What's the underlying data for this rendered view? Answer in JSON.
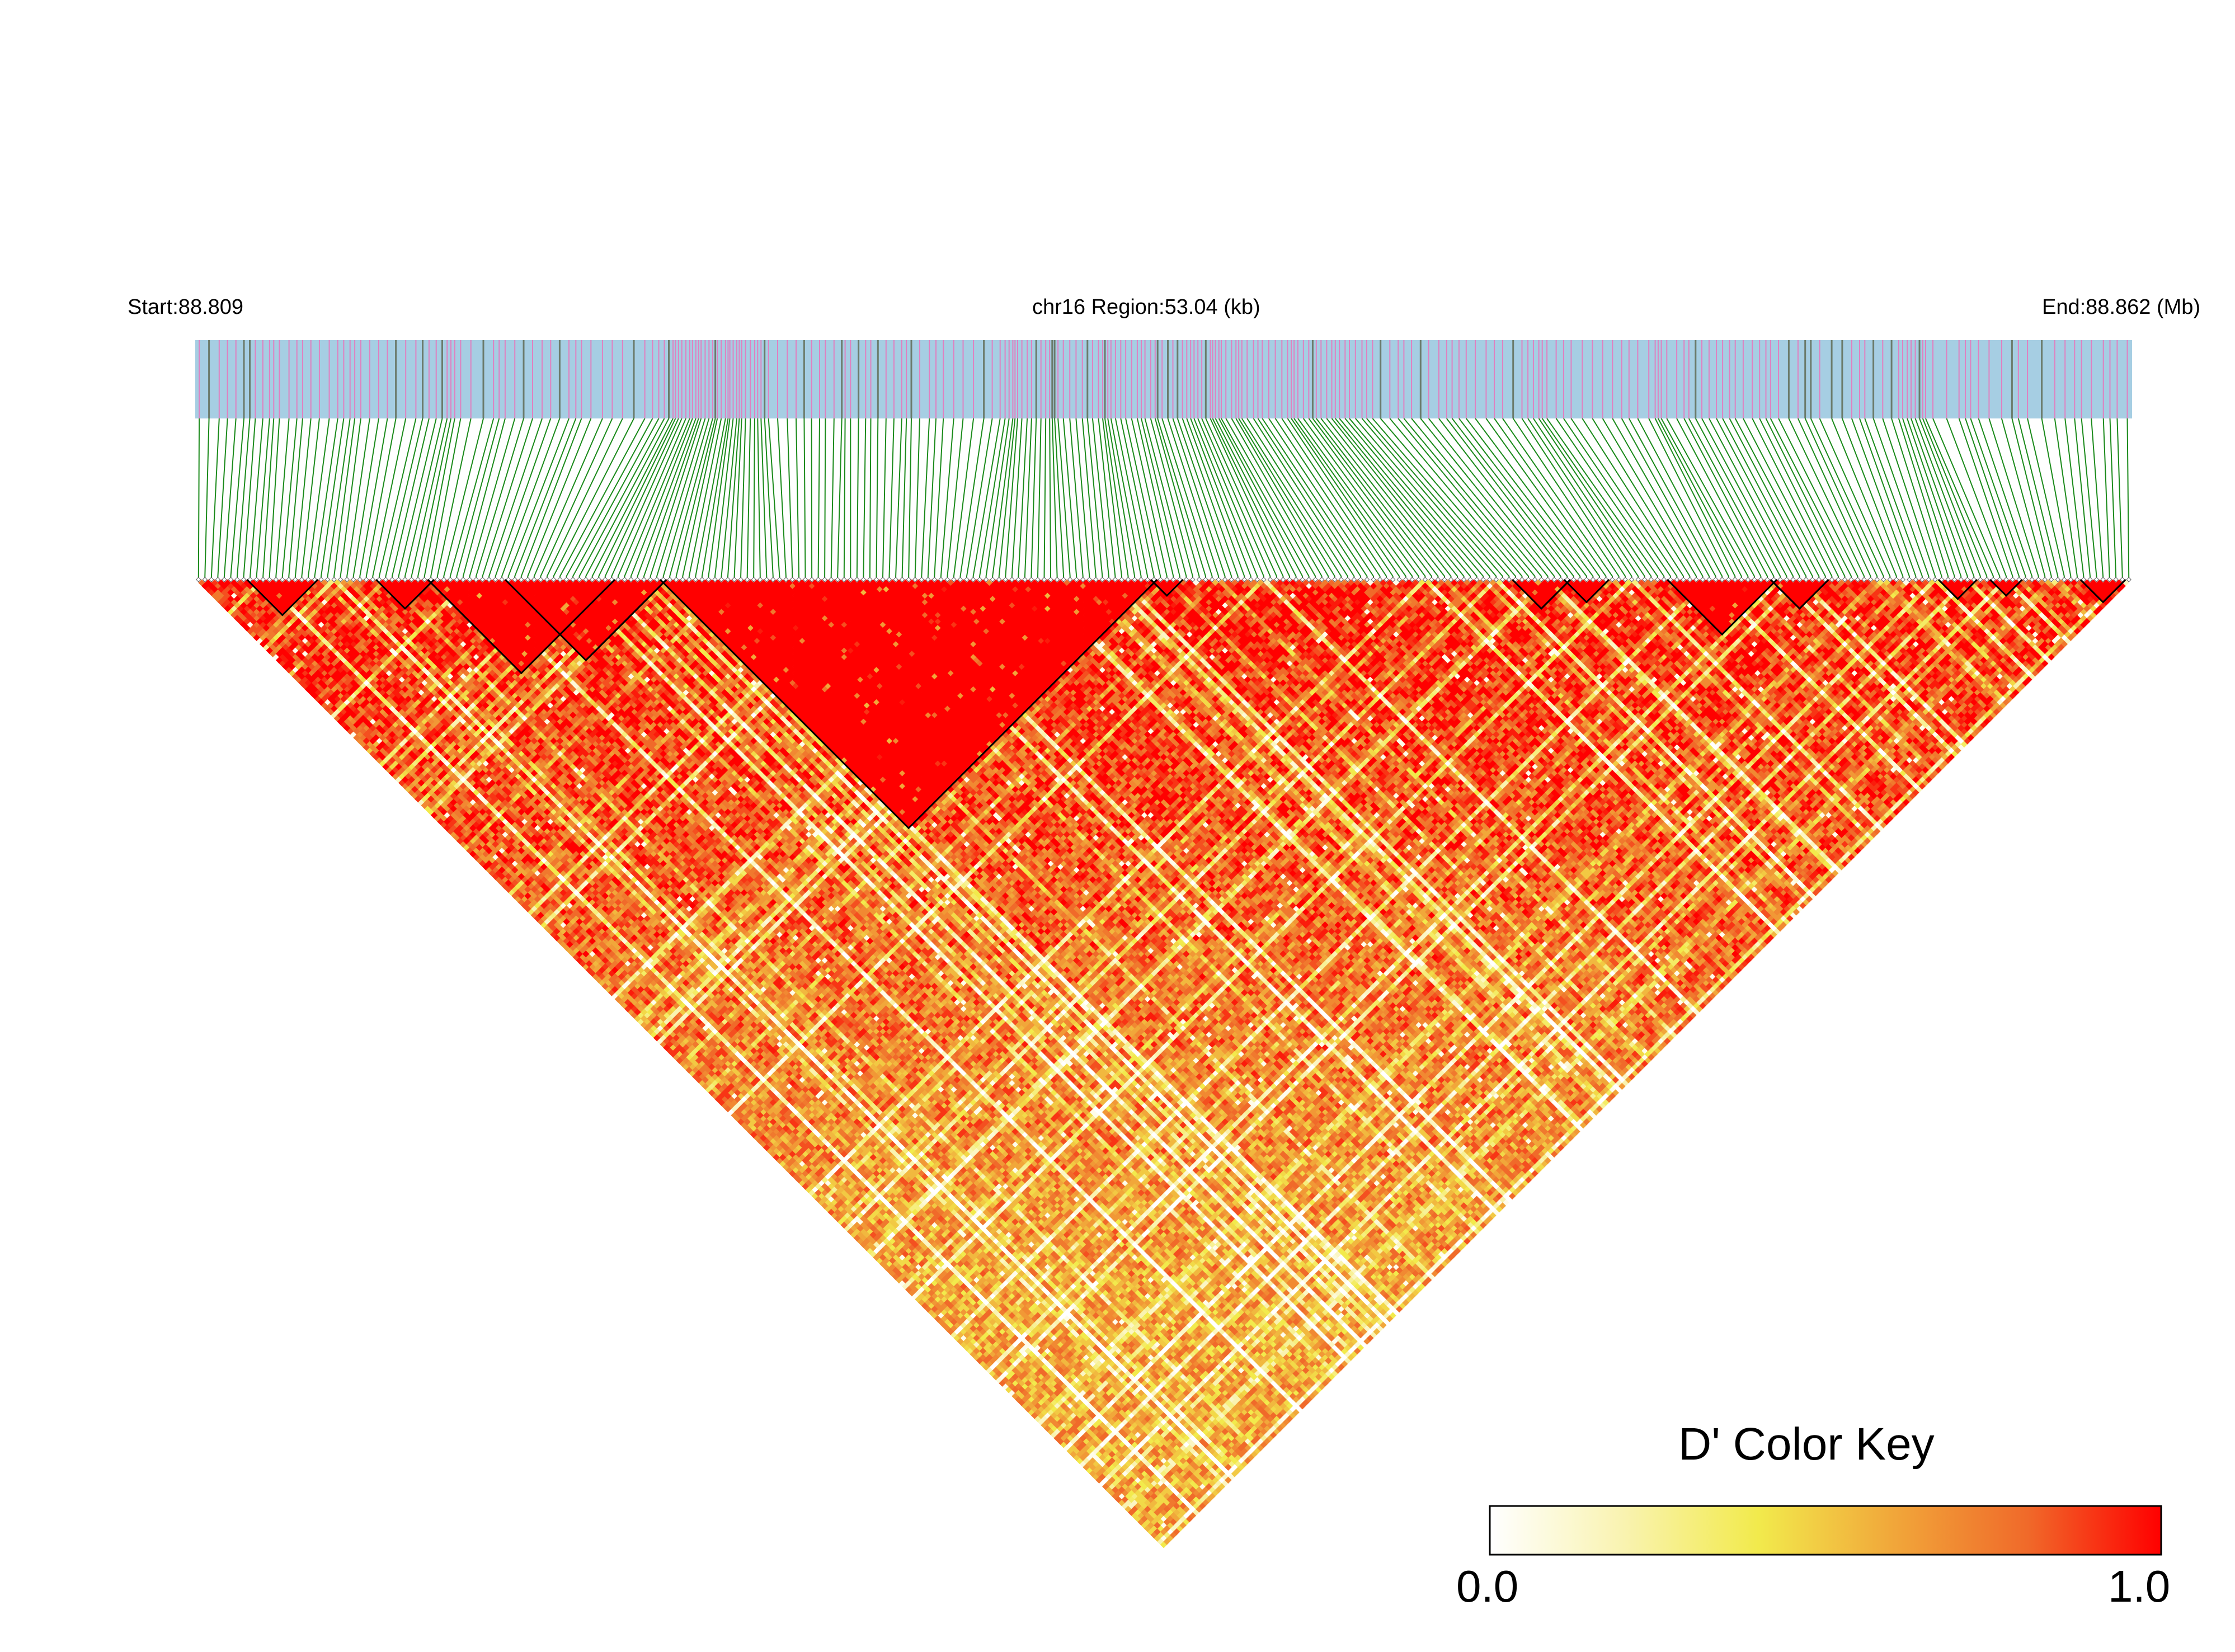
{
  "chart_data": {
    "type": "heatmap",
    "header": {
      "start_label": "Start:88.809",
      "region_label": "chr16 Region:53.04 (kb)",
      "end_label": "End:88.862 (Mb)"
    },
    "region": {
      "chromosome": "chr16",
      "start_mb": 88.809,
      "end_mb": 88.862,
      "length_kb": 53.04
    },
    "marker_count": 300,
    "annotation_colors": {
      "bar": "#a6cee3",
      "minor_marks": "#e080c0",
      "dense_marks": "#6b7b6b",
      "connector_lines": "#1a8a1a"
    },
    "ld_blocks": [
      {
        "start": 8,
        "end": 18
      },
      {
        "start": 28,
        "end": 36
      },
      {
        "start": 36,
        "end": 64
      },
      {
        "start": 48,
        "end": 72
      },
      {
        "start": 72,
        "end": 148
      },
      {
        "start": 148,
        "end": 152
      },
      {
        "start": 204,
        "end": 212
      },
      {
        "start": 212,
        "end": 218
      },
      {
        "start": 228,
        "end": 244
      },
      {
        "start": 244,
        "end": 252
      },
      {
        "start": 270,
        "end": 275
      },
      {
        "start": 278,
        "end": 282
      },
      {
        "start": 292,
        "end": 298
      }
    ],
    "color_key": {
      "title": "D' Color Key",
      "min_label": "0.0",
      "max_label": "1.0",
      "min": 0.0,
      "max": 1.0,
      "stops": [
        "#ffffff",
        "#f9f3b0",
        "#f2ea4c",
        "#f1a73a",
        "#f06a2a",
        "#ff0000"
      ]
    }
  }
}
